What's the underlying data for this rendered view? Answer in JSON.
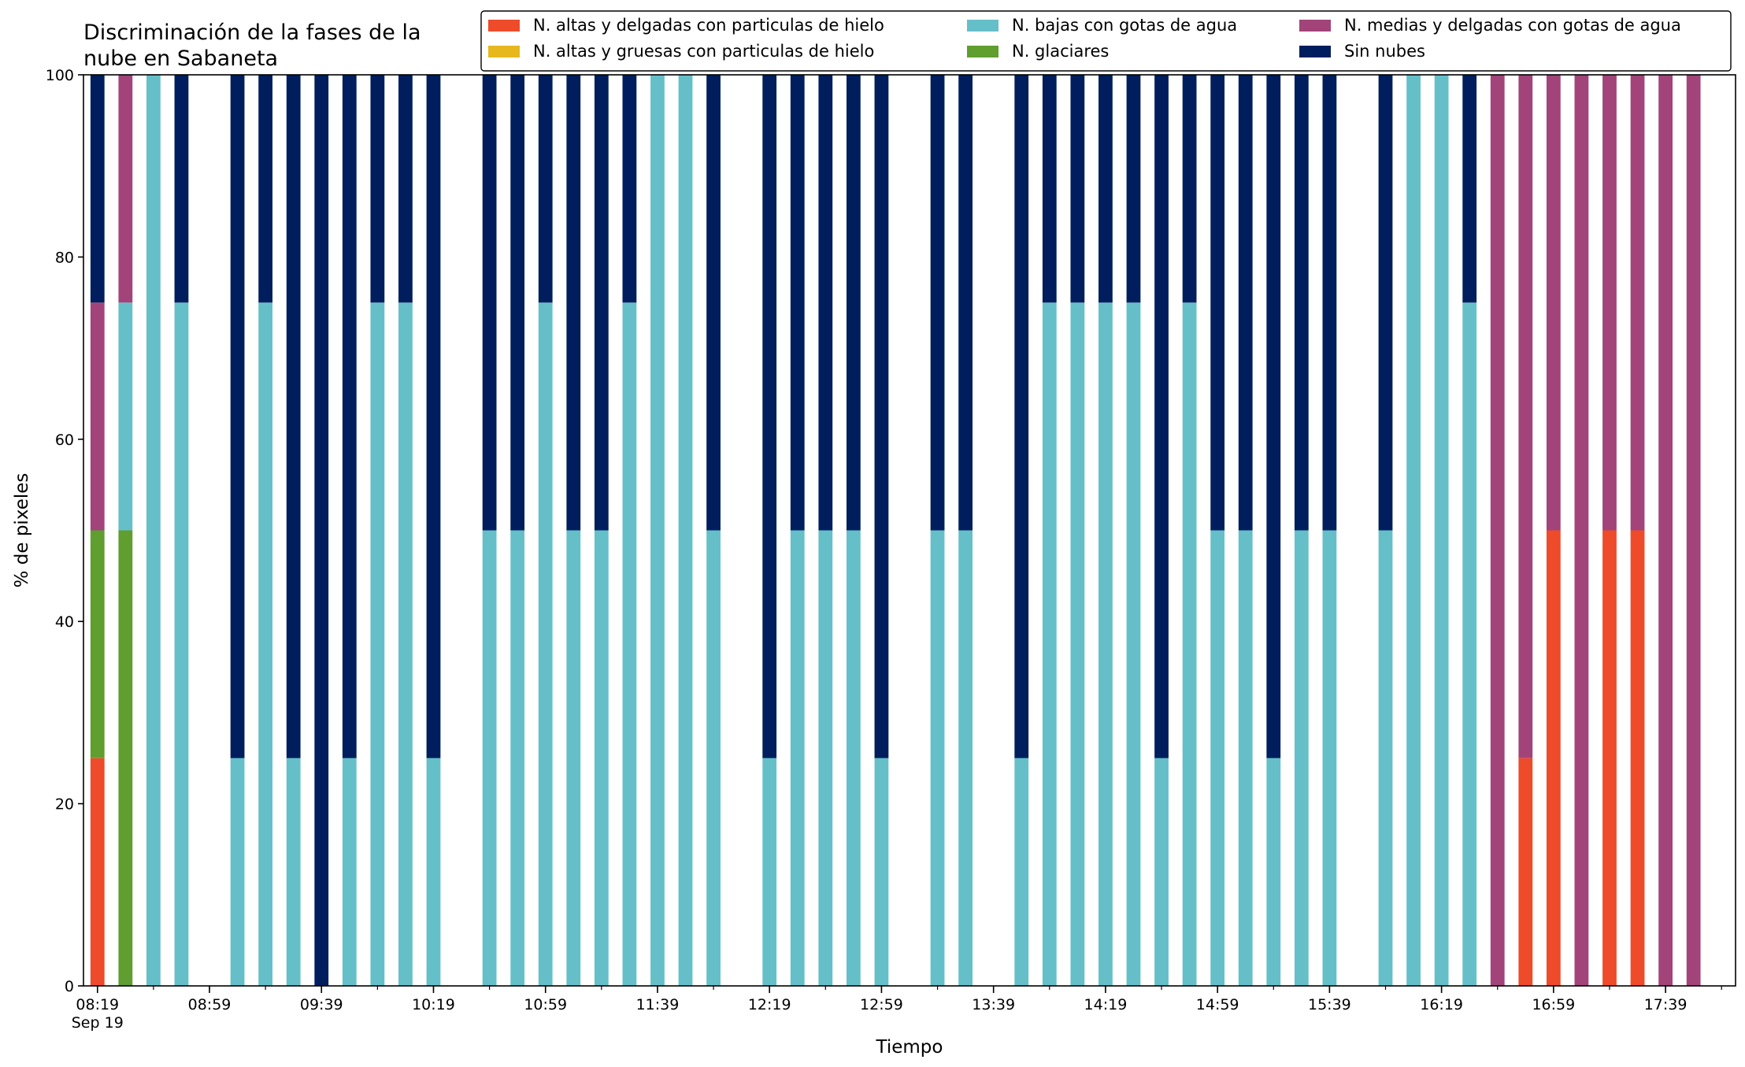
{
  "chart_data": {
    "type": "bar",
    "stacked": true,
    "title_lines": [
      "Discriminación de la fases de la",
      "nube en Sabaneta"
    ],
    "xlabel": "Tiempo",
    "ylabel": "% de pixeles",
    "ylim": [
      0,
      100
    ],
    "yticks": [
      0,
      20,
      40,
      60,
      80,
      100
    ],
    "xlim": [
      "08:14",
      "18:04"
    ],
    "x_step_minutes": 10,
    "x_tick_labels": [
      {
        "t": "08:19",
        "text": "08:19",
        "sub": "Sep 19"
      },
      {
        "t": "08:59",
        "text": "08:59"
      },
      {
        "t": "09:39",
        "text": "09:39"
      },
      {
        "t": "10:19",
        "text": "10:19"
      },
      {
        "t": "10:59",
        "text": "10:59"
      },
      {
        "t": "11:39",
        "text": "11:39"
      },
      {
        "t": "12:19",
        "text": "12:19"
      },
      {
        "t": "12:59",
        "text": "12:59"
      },
      {
        "t": "13:39",
        "text": "13:39"
      },
      {
        "t": "14:19",
        "text": "14:19"
      },
      {
        "t": "14:59",
        "text": "14:59"
      },
      {
        "t": "15:39",
        "text": "15:39"
      },
      {
        "t": "16:19",
        "text": "16:19"
      },
      {
        "t": "16:59",
        "text": "16:59"
      },
      {
        "t": "17:39",
        "text": "17:39"
      }
    ],
    "legend_position": "top-right",
    "legend_columns": 3,
    "colors": [
      "#ee4b2b",
      "#e6b81e",
      "#65bfc9",
      "#5f9e2f",
      "#a2447a",
      "#001e5e"
    ],
    "series": [
      {
        "name": "N. altas y delgadas con particulas de hielo",
        "color": "#ee4b2b"
      },
      {
        "name": "N. altas y gruesas con particulas de hielo",
        "color": "#e6b81e"
      },
      {
        "name": "N. bajas con gotas de agua",
        "color": "#65bfc9"
      },
      {
        "name": "N. glaciares",
        "color": "#5f9e2f"
      },
      {
        "name": "N. medias y delgadas con gotas de agua",
        "color": "#a2447a"
      },
      {
        "name": "Sin nubes",
        "color": "#001e5e"
      }
    ],
    "stack_order": [
      0,
      1,
      3,
      2,
      4,
      5
    ],
    "x": [
      "08:19",
      "08:29",
      "08:39",
      "08:49",
      "09:09",
      "09:19",
      "09:29",
      "09:39",
      "09:49",
      "09:59",
      "10:09",
      "10:19",
      "10:39",
      "10:49",
      "10:59",
      "11:09",
      "11:19",
      "11:29",
      "11:39",
      "11:49",
      "11:59",
      "12:19",
      "12:29",
      "12:39",
      "12:49",
      "12:59",
      "13:19",
      "13:29",
      "13:49",
      "13:59",
      "14:09",
      "14:19",
      "14:29",
      "14:39",
      "14:49",
      "14:59",
      "15:09",
      "15:19",
      "15:29",
      "15:39",
      "15:59",
      "16:09",
      "16:19",
      "16:29",
      "16:39",
      "16:49",
      "16:59",
      "17:09",
      "17:19",
      "17:29",
      "17:39",
      "17:49"
    ],
    "values": [
      [
        25,
        0,
        0,
        25,
        25,
        25
      ],
      [
        0,
        0,
        25,
        50,
        25,
        0
      ],
      [
        0,
        0,
        100,
        0,
        0,
        0
      ],
      [
        0,
        0,
        75,
        0,
        0,
        25
      ],
      [
        0,
        0,
        25,
        0,
        0,
        75
      ],
      [
        0,
        0,
        75,
        0,
        0,
        25
      ],
      [
        0,
        0,
        25,
        0,
        0,
        75
      ],
      [
        0,
        0,
        0,
        0,
        0,
        100
      ],
      [
        0,
        0,
        25,
        0,
        0,
        75
      ],
      [
        0,
        0,
        75,
        0,
        0,
        25
      ],
      [
        0,
        0,
        75,
        0,
        0,
        25
      ],
      [
        0,
        0,
        25,
        0,
        0,
        75
      ],
      [
        0,
        0,
        50,
        0,
        0,
        50
      ],
      [
        0,
        0,
        50,
        0,
        0,
        50
      ],
      [
        0,
        0,
        75,
        0,
        0,
        25
      ],
      [
        0,
        0,
        50,
        0,
        0,
        50
      ],
      [
        0,
        0,
        50,
        0,
        0,
        50
      ],
      [
        0,
        0,
        75,
        0,
        0,
        25
      ],
      [
        0,
        0,
        100,
        0,
        0,
        0
      ],
      [
        0,
        0,
        100,
        0,
        0,
        0
      ],
      [
        0,
        0,
        50,
        0,
        0,
        50
      ],
      [
        0,
        0,
        25,
        0,
        0,
        75
      ],
      [
        0,
        0,
        50,
        0,
        0,
        50
      ],
      [
        0,
        0,
        50,
        0,
        0,
        50
      ],
      [
        0,
        0,
        50,
        0,
        0,
        50
      ],
      [
        0,
        0,
        25,
        0,
        0,
        75
      ],
      [
        0,
        0,
        50,
        0,
        0,
        50
      ],
      [
        0,
        0,
        50,
        0,
        0,
        50
      ],
      [
        0,
        0,
        25,
        0,
        0,
        75
      ],
      [
        0,
        0,
        75,
        0,
        0,
        25
      ],
      [
        0,
        0,
        75,
        0,
        0,
        25
      ],
      [
        0,
        0,
        75,
        0,
        0,
        25
      ],
      [
        0,
        0,
        75,
        0,
        0,
        25
      ],
      [
        0,
        0,
        25,
        0,
        0,
        75
      ],
      [
        0,
        0,
        75,
        0,
        0,
        25
      ],
      [
        0,
        0,
        50,
        0,
        0,
        50
      ],
      [
        0,
        0,
        50,
        0,
        0,
        50
      ],
      [
        0,
        0,
        25,
        0,
        0,
        75
      ],
      [
        0,
        0,
        50,
        0,
        0,
        50
      ],
      [
        0,
        0,
        50,
        0,
        0,
        50
      ],
      [
        0,
        0,
        50,
        0,
        0,
        50
      ],
      [
        0,
        0,
        100,
        0,
        0,
        0
      ],
      [
        0,
        0,
        100,
        0,
        0,
        0
      ],
      [
        0,
        0,
        75,
        0,
        0,
        25
      ],
      [
        0,
        0,
        0,
        0,
        100,
        0
      ],
      [
        25,
        0,
        0,
        0,
        75,
        0
      ],
      [
        50,
        0,
        0,
        0,
        50,
        0
      ],
      [
        0,
        0,
        0,
        0,
        100,
        0
      ],
      [
        50,
        0,
        0,
        0,
        50,
        0
      ],
      [
        50,
        0,
        0,
        0,
        50,
        0
      ],
      [
        0,
        0,
        0,
        0,
        100,
        0
      ],
      [
        0,
        0,
        0,
        0,
        100,
        0
      ]
    ]
  }
}
